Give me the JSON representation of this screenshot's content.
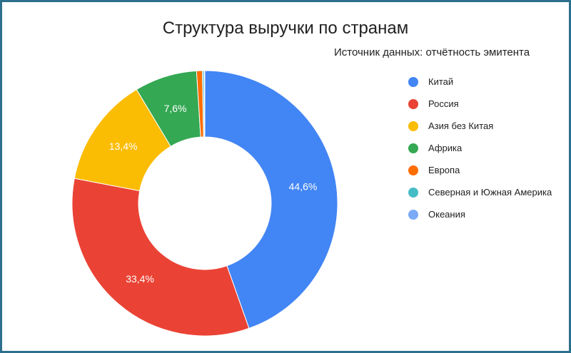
{
  "chart_data": {
    "type": "pie",
    "subtype": "donut",
    "title": "Структура выручки по странам",
    "subtitle": "Источник данных: отчётность эмитента",
    "legend_position": "right",
    "categories": [
      "Китай",
      "Россия",
      "Азия без Китая",
      "Африка",
      "Европа",
      "Северная и Южная Америка",
      "Океания"
    ],
    "values": [
      44.6,
      33.4,
      13.4,
      7.6,
      0.7,
      0.2,
      0.1
    ],
    "data_labels": [
      "44,6%",
      "33,4%",
      "13,4%",
      "7,6%",
      "",
      "",
      ""
    ],
    "colors": [
      "#4285f4",
      "#ea4335",
      "#fbbc04",
      "#34a853",
      "#ff6d01",
      "#46bdc6",
      "#7baaf7"
    ]
  }
}
